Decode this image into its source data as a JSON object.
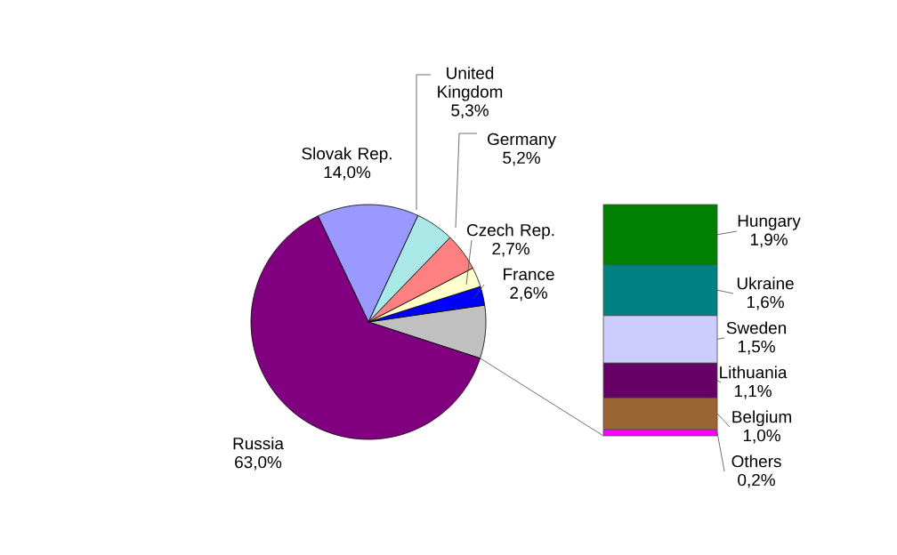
{
  "chart_data": [
    {
      "type": "pie",
      "categories": [
        "Russia",
        "Slovak Rep.",
        "United Kingdom",
        "Germany",
        "Czech Rep.",
        "France",
        null
      ],
      "values": [
        63.0,
        14.0,
        5.3,
        5.2,
        2.7,
        2.6,
        7.3
      ],
      "colors": [
        "#800080",
        "#9999ff",
        "#aae8e8",
        "#ff8080",
        "#ffffcc",
        "#0000ff",
        "#c0c0c0"
      ],
      "value_labels": [
        "63,0%",
        "14,0%",
        "5,3%",
        "5,2%",
        "2,7%",
        "2,6%",
        null
      ]
    },
    {
      "type": "bar",
      "stacked": true,
      "categories": [
        null
      ],
      "series": [
        {
          "name": "Others",
          "color": "#ff00ff",
          "values": [
            0.2
          ],
          "value_labels": [
            "0,2%"
          ]
        },
        {
          "name": "Belgium",
          "color": "#996633",
          "values": [
            1.0
          ],
          "value_labels": [
            "1,0%"
          ]
        },
        {
          "name": "Lithuania",
          "color": "#660066",
          "values": [
            1.1
          ],
          "value_labels": [
            "1,1%"
          ]
        },
        {
          "name": "Sweden",
          "color": "#ccccff",
          "values": [
            1.5
          ],
          "value_labels": [
            "1,5%"
          ]
        },
        {
          "name": "Ukraine",
          "color": "#008080",
          "values": [
            1.6
          ],
          "value_labels": [
            "1,6%"
          ]
        },
        {
          "name": "Hungary",
          "color": "#008000",
          "values": [
            1.9
          ],
          "value_labels": [
            "1,9%"
          ]
        }
      ]
    }
  ]
}
